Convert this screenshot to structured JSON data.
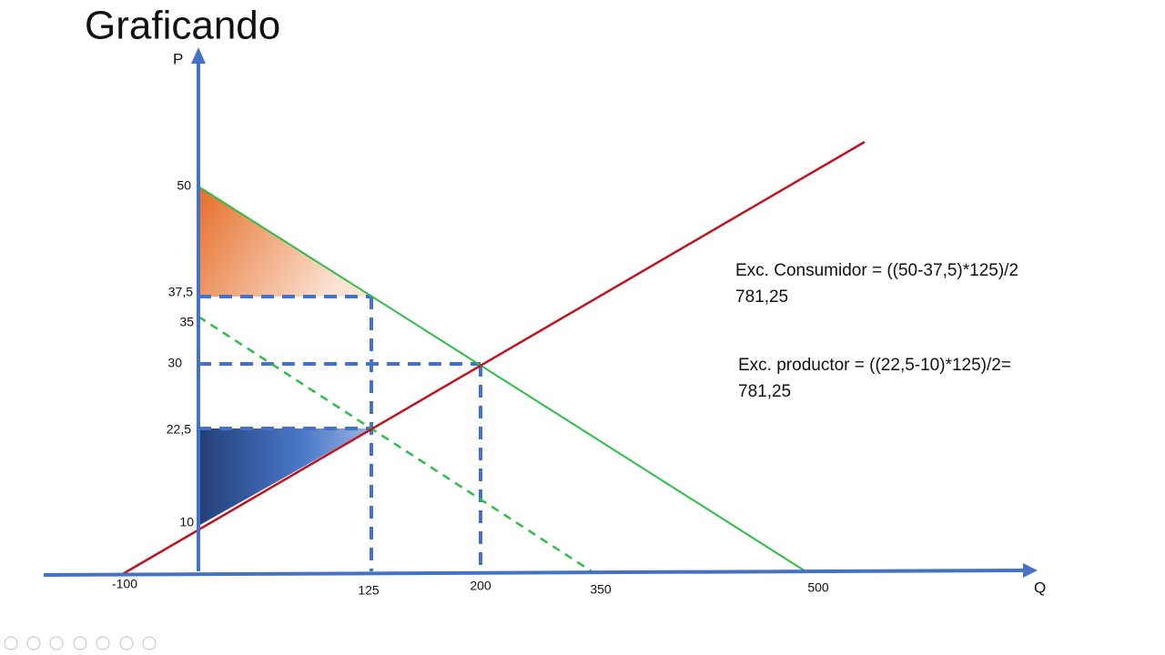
{
  "header": {
    "title": "Graficando"
  },
  "axes": {
    "y_label": "P",
    "x_label": "Q",
    "y_ticks": [
      "50",
      "37,5",
      "35",
      "30",
      "22,5",
      "10"
    ],
    "x_ticks": [
      "-100",
      "125",
      "200",
      "350",
      "500"
    ]
  },
  "annotations": {
    "consumer": [
      "Exc. Consumidor = ((50-37,5)*125)/2",
      "781,25"
    ],
    "producer": [
      "Exc. productor = ((22,5-10)*125)/2=",
      "781,25"
    ]
  }
}
